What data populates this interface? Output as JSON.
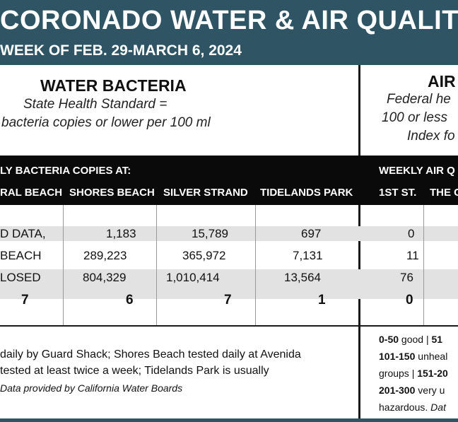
{
  "header": {
    "title": "CORONADO WATER & AIR QUALITY",
    "subtitle": "WEEK OF FEB. 29-MARCH 6, 2024"
  },
  "water": {
    "title": "WATER BACTERIA",
    "standard_line1": "State Health Standard  =",
    "standard_line2": "bacteria copies or lower per 100 ml",
    "bar_label": "LY BACTERIA COPIES AT:",
    "columns": [
      "RAL BEACH",
      "SHORES BEACH",
      "SILVER STRAND",
      "TIDELANDS PARK"
    ],
    "rows": [
      {
        "label": "D DATA,",
        "values": [
          "1,183",
          "15,789",
          "697"
        ]
      },
      {
        "label": "BEACH",
        "values": [
          "289,223",
          "365,972",
          "7,131"
        ]
      },
      {
        "label": "LOSED",
        "values": [
          "804,329",
          "1,010,414",
          "13,564"
        ]
      }
    ],
    "totals": [
      "7",
      "6",
      "7",
      "1"
    ],
    "note_line1": "daily by Guard Shack; Shores Beach tested daily at Avenida",
    "note_line2": "tested at least twice a week; Tidelands Park is usually",
    "source": "Data provided by California Water Boards"
  },
  "air": {
    "title": "AIR",
    "standard_line1": "Federal he",
    "standard_line2": "100 or less",
    "standard_line3": "Index fo",
    "bar_label": "WEEKLY AIR Q",
    "columns": [
      "1ST ST.",
      "THE C"
    ],
    "values": [
      "0",
      "11",
      "76"
    ],
    "total": "0",
    "legend": {
      "l1_bold": "0-50",
      "l1_text": " good | ",
      "l1_bold2": "51",
      "l2_bold": "101-150",
      "l2_text": " unheal",
      "l3_text": "groups | ",
      "l3_bold": "151-20",
      "l4_bold": "201-300",
      "l4_text": " very u",
      "l5_text": "hazardous. ",
      "l5_it": "Dat"
    }
  }
}
